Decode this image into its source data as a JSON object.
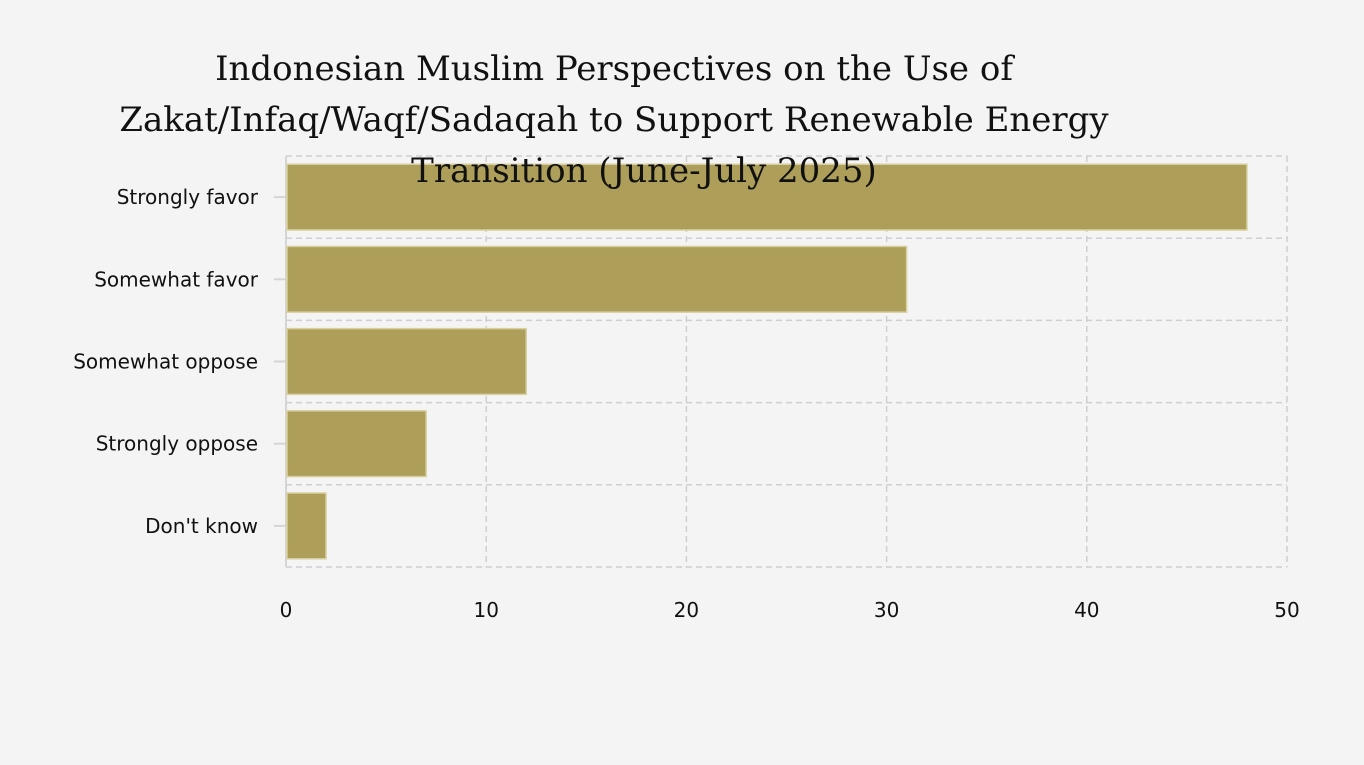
{
  "chart_data": {
    "type": "bar",
    "orientation": "horizontal",
    "title": "Indonesian Muslim Perspectives on the Use of Zakat/Infaq/Waqf/Sadaqah to Support Renewable Energy Transition (June-July 2025)",
    "title_lines": [
      "Indonesian Muslim Perspectives on the Use of",
      "Zakat/Infaq/Waqf/Sadaqah to Support Renewable Energy",
      "Transition (June-July 2025)"
    ],
    "categories": [
      "Strongly favor",
      "Somewhat favor",
      "Somewhat oppose",
      "Strongly oppose",
      "Don't know"
    ],
    "values": [
      48,
      31,
      12,
      7,
      2
    ],
    "xlabel": "",
    "ylabel": "",
    "xlim": [
      0,
      50
    ],
    "xticks": [
      "0",
      "10",
      "20",
      "30",
      "40",
      "50"
    ],
    "grid": true,
    "bar_color": "#ad9f5a",
    "bar_border_color": "#d8d0a0"
  }
}
